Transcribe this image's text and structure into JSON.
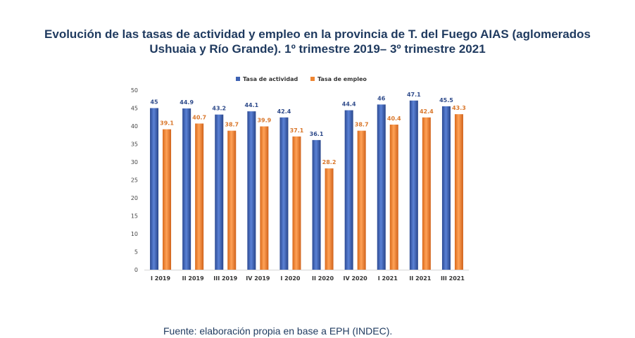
{
  "chart_data": {
    "type": "bar",
    "title": "Evolución de las tasas de actividad y empleo en la provincia de T. del Fuego AIAS (aglomerados Ushuaia y Río Grande). 1º trimestre 2019– 3º trimestre 2021",
    "xlabel": "",
    "ylabel": "",
    "ylim": [
      0,
      50
    ],
    "yticks": [
      0,
      5,
      10,
      15,
      20,
      25,
      30,
      35,
      40,
      45,
      50
    ],
    "grid": false,
    "legend_position": "top",
    "categories": [
      "I 2019",
      "II 2019",
      "III 2019",
      "IV 2019",
      "I 2020",
      "II 2020",
      "IV 2020",
      "I 2021",
      "II 2021",
      "III 2021"
    ],
    "series": [
      {
        "name": "Tasa de actividad",
        "color": "#3e62b3",
        "label_color": "#2e4a8a",
        "values": [
          45,
          44.9,
          43.2,
          44.1,
          42.4,
          36.1,
          44.4,
          46,
          47.1,
          45.5
        ]
      },
      {
        "name": "Tasa de empleo",
        "color": "#ee8532",
        "label_color": "#d9772b",
        "values": [
          39.1,
          40.7,
          38.7,
          39.9,
          37.1,
          28.2,
          38.7,
          40.4,
          42.4,
          43.3
        ]
      }
    ]
  },
  "source": "Fuente: elaboración propia en base a EPH (INDEC)."
}
